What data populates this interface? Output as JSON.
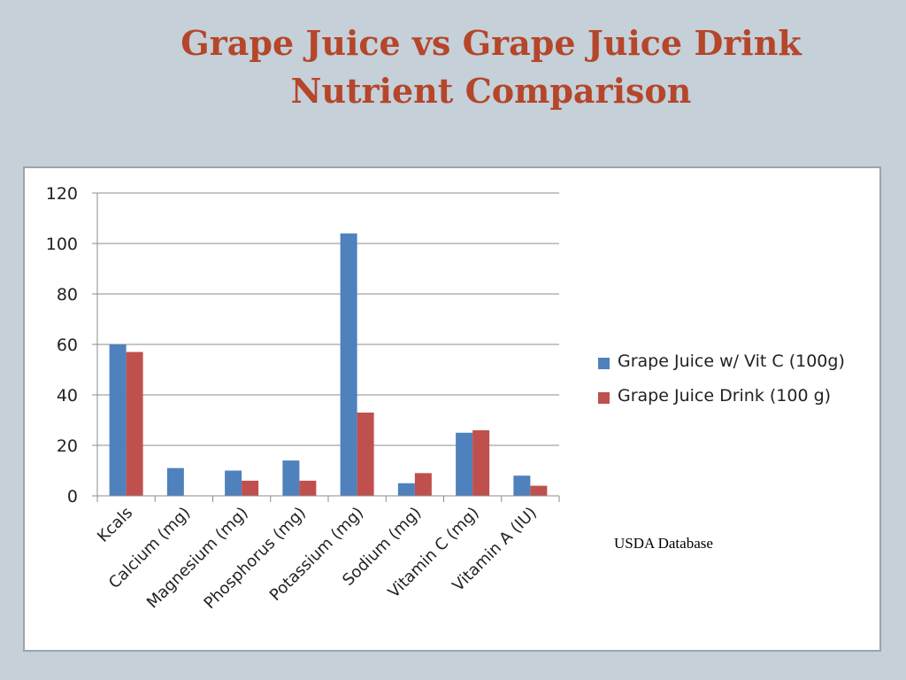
{
  "slide": {
    "title_line1": "Grape Juice vs Grape Juice Drink",
    "title_line2": "Nutrient Comparison",
    "source": "USDA Database"
  },
  "chart_data": {
    "type": "bar",
    "title": "",
    "xlabel": "",
    "ylabel": "",
    "ylim": [
      0,
      120
    ],
    "yticks": [
      0,
      20,
      40,
      60,
      80,
      100,
      120
    ],
    "grid": true,
    "legend_position": "right",
    "categories": [
      "Kcals",
      "Calcium (mg)",
      "Magnesium (mg)",
      "Phosphorus (mg)",
      "Potassium (mg)",
      "Sodium (mg)",
      "Vitamin C (mg)",
      "Vitamin A (IU)"
    ],
    "series": [
      {
        "name": "Grape Juice w/ Vit C (100g)",
        "color": "#4f81bd",
        "values": [
          60,
          11,
          10,
          14,
          104,
          5,
          25,
          8
        ]
      },
      {
        "name": "Grape Juice Drink (100 g)",
        "color": "#c0504d",
        "values": [
          57,
          0,
          6,
          6,
          33,
          9,
          26,
          4
        ]
      }
    ]
  }
}
